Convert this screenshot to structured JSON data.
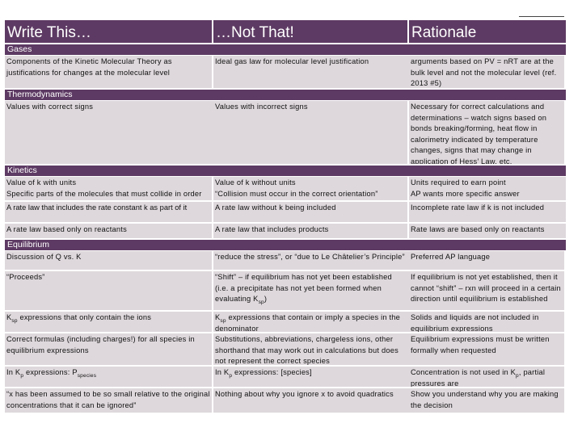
{
  "header": {
    "col1": "Write This…",
    "col2": "…Not That!",
    "col3": "Rationale"
  },
  "sections": {
    "gases": "Gases",
    "thermo": "Thermodynamics",
    "kinetics": "Kinetics",
    "equilibrium": "Equilibrium"
  },
  "rows": {
    "r1": {
      "a": "Components of the Kinetic Molecular Theory as justifications for changes at the molecular level",
      "b": "Ideal gas law for molecular level justification",
      "c": "arguments based on PV = nRT are at the bulk level and not the molecular level (ref. 2013 #5)"
    },
    "r2": {
      "a": "Values with correct signs",
      "b": "Values with incorrect signs",
      "c": "Necessary for correct calculations and determinations – watch signs based on bonds breaking/forming, heat flow in calorimetry indicated by temperature changes, signs that may change in application of Hess’ Law, etc."
    },
    "r3": {
      "a": "Value of k with units\nSpecific parts of the molecules that must collide in order for the reaction to occur",
      "b": "Value of k without units\n“Collision must occur in the correct orientation”",
      "c": "Units required to earn point\nAP wants more specific answer"
    },
    "r4": {
      "a": "A rate law that includes the rate constant k as part of it",
      "b": "A rate law without k being included",
      "c": "Incomplete rate law if k is not included"
    },
    "r5": {
      "a": "A rate law based only on reactants",
      "b": "A rate law that includes products",
      "c": "Rate laws are based only on reactants"
    },
    "r6": {
      "a": "Discussion of Q vs. K",
      "b": "“reduce the stress”, or “due to Le Châtelier’s Principle”",
      "c": "Preferred AP language"
    },
    "r7": {
      "a": "“Proceeds”",
      "b": "“Shift” – if equilibrium has not yet been established (i.e. a precipitate has not yet been formed when evaluating K",
      "b_sub": "sp",
      "b_end": ")",
      "c": "If equilibrium is not yet established, then it cannot “shift” – rxn will proceed in a certain direction until equilibrium is established"
    },
    "r8": {
      "a": "K",
      "a_sub": "sp",
      "a_end": " expressions that only contain the ions",
      "b": "K",
      "b_sub": "sp",
      "b_end": " expressions that contain or imply a species in the denominator",
      "c": "Solids and liquids are not included in equilibrium expressions"
    },
    "r9": {
      "a": "Correct formulas (including charges!) for all species in equilibrium expressions",
      "b": "Substitutions, abbreviations, chargeless ions, other shorthand that may work out in calculations but does not represent the correct species",
      "c": "Equilibrium expressions must be written formally when requested"
    },
    "r10": {
      "a": "In K",
      "a_sub": "p",
      "a_end": " expressions:  P",
      "a_sub2": "species",
      "b": "In K",
      "b_sub": "p",
      "b_end": " expressions: [species]",
      "c": "Concentration is not used in K",
      "c_sub": "p",
      "c_end": ", partial pressures are"
    },
    "r11": {
      "a": "“x has been assumed to be so small relative to the original concentrations that it can be ignored”",
      "b": "Nothing about why you ignore x to avoid quadratics",
      "c": "Show you understand why you are making the decision"
    }
  }
}
